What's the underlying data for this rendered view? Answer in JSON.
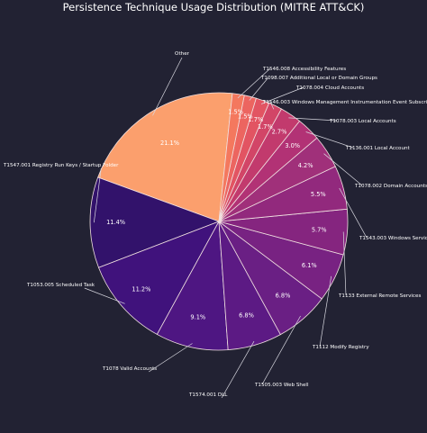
{
  "chart_data": {
    "type": "pie",
    "title": "Persistence Technique Usage Distribution (MITRE ATT&CK)",
    "start_angle_deg": 84,
    "direction": "counterclockwise",
    "slices": [
      {
        "label": "Other",
        "value": 21.1,
        "pct_label": "21.1%",
        "color": "#fb9f6d"
      },
      {
        "label": "T1547.001 Registry Run Keys / Startup Folder",
        "value": 11.4,
        "pct_label": "11.4%",
        "color": "#32126b"
      },
      {
        "label": "T1053.005 Scheduled Task",
        "value": 11.2,
        "pct_label": "11.2%",
        "color": "#40127c"
      },
      {
        "label": "T1078 Valid Accounts",
        "value": 9.1,
        "pct_label": "9.1%",
        "color": "#4e1682"
      },
      {
        "label": "T1574.001 DLL",
        "value": 6.8,
        "pct_label": "6.8%",
        "color": "#5c1a84"
      },
      {
        "label": "T1505.003 Web Shell",
        "value": 6.8,
        "pct_label": "6.8%",
        "color": "#6a1f84"
      },
      {
        "label": "T1112 Modify Registry",
        "value": 6.1,
        "pct_label": "6.1%",
        "color": "#782282"
      },
      {
        "label": "T1133 External Remote Services",
        "value": 5.7,
        "pct_label": "5.7%",
        "color": "#85257f"
      },
      {
        "label": "T1543.003 Windows Service",
        "value": 5.5,
        "pct_label": "5.5%",
        "color": "#92297d"
      },
      {
        "label": "T1078.002 Domain Accounts",
        "value": 4.2,
        "pct_label": "4.2%",
        "color": "#a0307a"
      },
      {
        "label": "T1136.001 Local Account",
        "value": 3.0,
        "pct_label": "3.0%",
        "color": "#b23275"
      },
      {
        "label": "T1078.003 Local Accounts",
        "value": 2.7,
        "pct_label": "2.7%",
        "color": "#c23a6d"
      },
      {
        "label": "T1546.003 Windows Management Instrumentation Event Subscription",
        "value": 1.7,
        "pct_label": "1.7%",
        "color": "#d24567"
      },
      {
        "label": "T1078.004 Cloud Accounts",
        "value": 1.7,
        "pct_label": "1.7%",
        "color": "#e25462"
      },
      {
        "label": "T1098.007 Additional Local or Domain Groups",
        "value": 1.5,
        "pct_label": "1.5%",
        "color": "#ec6560"
      },
      {
        "label": "T1546.008 Accessibility Features",
        "value": 1.5,
        "pct_label": "1.5%",
        "color": "#f4785e"
      }
    ]
  }
}
